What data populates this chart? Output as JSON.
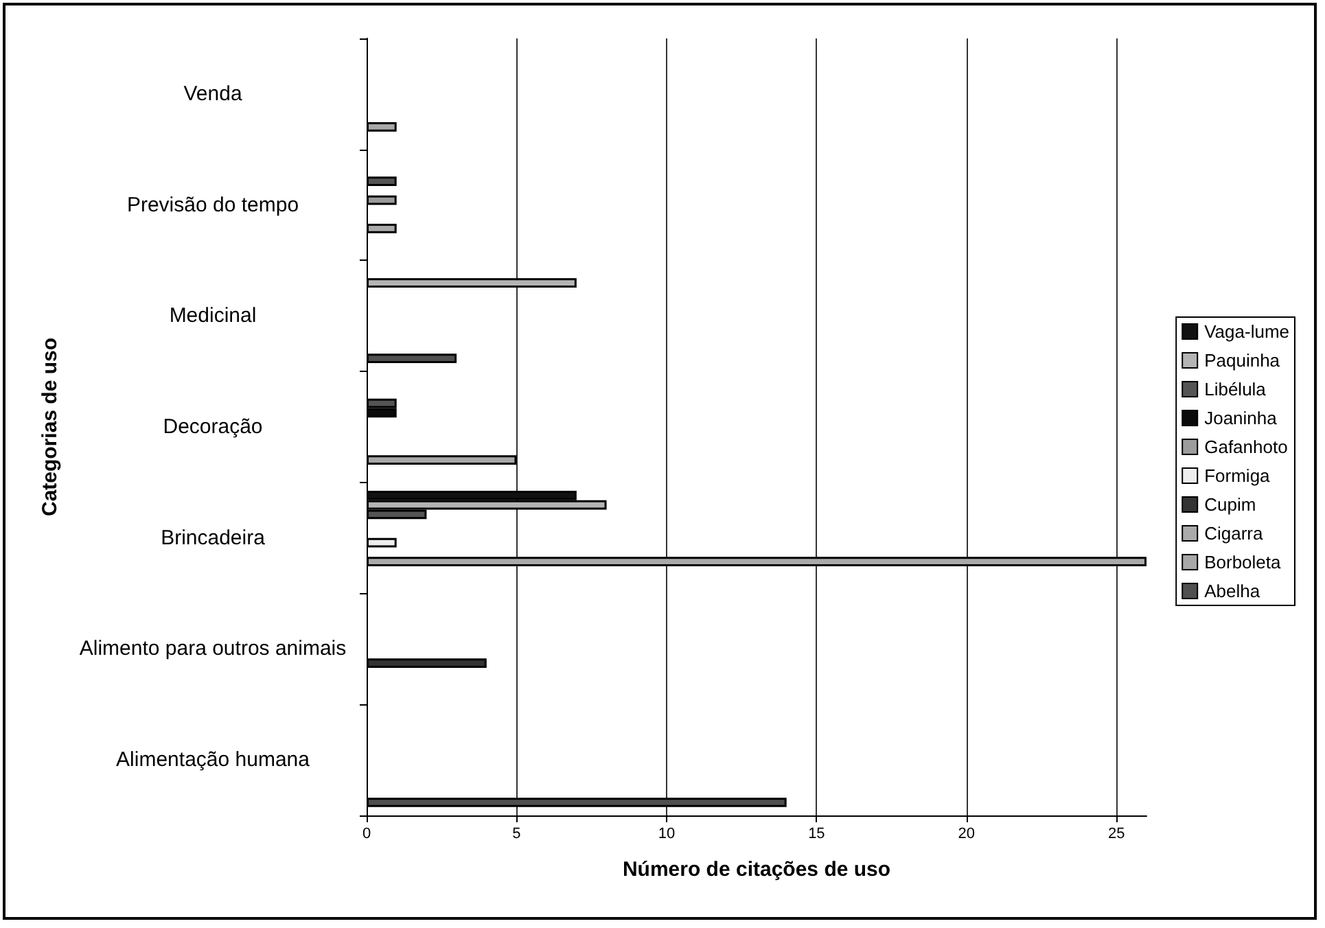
{
  "chart_data": {
    "type": "bar",
    "orientation": "horizontal",
    "xlabel": "Número de citações de uso",
    "ylabel": "Categorias de uso",
    "categories": [
      "Venda",
      "Previsão do tempo",
      "Medicinal",
      "Decoração",
      "Brincadeira",
      "Alimento para outros animais",
      "Alimentação humana"
    ],
    "series": [
      {
        "name": "Vaga-lume",
        "color": "#111111",
        "values": [
          null,
          null,
          null,
          null,
          7,
          null,
          null
        ]
      },
      {
        "name": "Paquinha",
        "color": "#b4b4b4",
        "values": [
          null,
          null,
          7,
          null,
          8,
          null,
          null
        ]
      },
      {
        "name": "Libélula",
        "color": "#555555",
        "values": [
          null,
          1,
          null,
          1,
          2,
          null,
          null
        ]
      },
      {
        "name": "Joaninha",
        "color": "#0a0a0a",
        "values": [
          null,
          null,
          null,
          1,
          null,
          null,
          null
        ]
      },
      {
        "name": "Gafanhoto",
        "color": "#9c9c9c",
        "values": [
          null,
          1,
          null,
          null,
          null,
          null,
          null
        ]
      },
      {
        "name": "Formiga",
        "color": "#eeeeee",
        "values": [
          null,
          null,
          null,
          null,
          1,
          null,
          null
        ]
      },
      {
        "name": "Cupim",
        "color": "#333333",
        "values": [
          null,
          null,
          null,
          null,
          null,
          4,
          null
        ]
      },
      {
        "name": "Cigarra",
        "color": "#aaaaaa",
        "values": [
          null,
          1,
          null,
          null,
          26,
          null,
          null
        ]
      },
      {
        "name": "Borboleta",
        "color": "#a8a8a8",
        "values": [
          1,
          null,
          null,
          5,
          null,
          null,
          null
        ]
      },
      {
        "name": "Abelha",
        "color": "#505050",
        "values": [
          null,
          null,
          3,
          null,
          null,
          null,
          14
        ]
      }
    ],
    "xlim": [
      0,
      26
    ],
    "xticks": [
      0,
      5,
      10,
      15,
      20,
      25
    ],
    "grid": "x",
    "legend": "right"
  }
}
